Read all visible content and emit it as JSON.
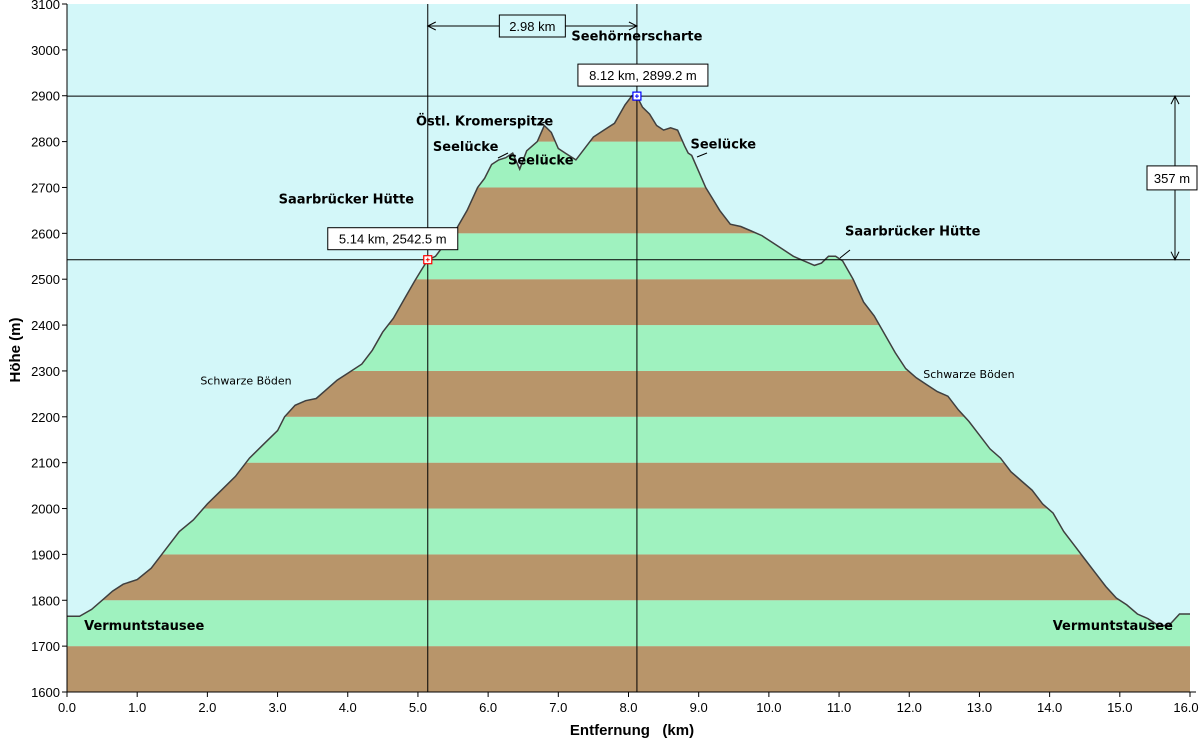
{
  "chart_data": {
    "type": "area",
    "title": "",
    "xlabel": "Entfernung   (km)",
    "ylabel": "Höhe (m)",
    "xlim": [
      0,
      16
    ],
    "ylim": [
      1600,
      3100
    ],
    "x_ticks": [
      "0.0",
      "1.0",
      "2.0",
      "3.0",
      "4.0",
      "5.0",
      "6.0",
      "7.0",
      "8.0",
      "9.0",
      "10.0",
      "11.0",
      "12.0",
      "13.0",
      "14.0",
      "15.0",
      "16.0"
    ],
    "y_ticks": [
      "1600",
      "1700",
      "1800",
      "1900",
      "2000",
      "2100",
      "2200",
      "2300",
      "2400",
      "2500",
      "2600",
      "2700",
      "2800",
      "2900",
      "3000",
      "3100"
    ],
    "grid": false,
    "background_color": "#d3f7f9",
    "band_colors": [
      "#b8956a",
      "#9ff2bf"
    ],
    "profile_line_color": "#3f3f3f",
    "series": [
      {
        "x": [
          0.0,
          0.18,
          0.35,
          0.5,
          0.65,
          0.8,
          1.0,
          1.2,
          1.4,
          1.6,
          1.8,
          2.0,
          2.2,
          2.4,
          2.6,
          2.8,
          3.0,
          3.1,
          3.25,
          3.4,
          3.55,
          3.7,
          3.85,
          4.0,
          4.2,
          4.35,
          4.5,
          4.65,
          4.8,
          4.95,
          5.05,
          5.14,
          5.25,
          5.4,
          5.55,
          5.7,
          5.85,
          5.95,
          6.05,
          6.15,
          6.25,
          6.35,
          6.45,
          6.55,
          6.7,
          6.8,
          6.9,
          7.0,
          7.1,
          7.25,
          7.4,
          7.5,
          7.65,
          7.8,
          7.95,
          8.05,
          8.12,
          8.2,
          8.3,
          8.4,
          8.5,
          8.6,
          8.7,
          8.8,
          8.85,
          8.9,
          9.0,
          9.1,
          9.2,
          9.3,
          9.45,
          9.6,
          9.75,
          9.9,
          10.05,
          10.2,
          10.35,
          10.5,
          10.65,
          10.75,
          10.85,
          10.95,
          11.05,
          11.2,
          11.35,
          11.5,
          11.65,
          11.8,
          11.95,
          12.1,
          12.25,
          12.4,
          12.55,
          12.7,
          12.85,
          13.0,
          13.15,
          13.3,
          13.45,
          13.6,
          13.75,
          13.9,
          14.05,
          14.2,
          14.35,
          14.5,
          14.65,
          14.8,
          14.95,
          15.1,
          15.25,
          15.4,
          15.55,
          15.7,
          15.85,
          16.0
        ],
        "y": [
          1765,
          1765,
          1780,
          1800,
          1820,
          1835,
          1845,
          1870,
          1910,
          1950,
          1975,
          2010,
          2040,
          2070,
          2110,
          2140,
          2170,
          2200,
          2225,
          2235,
          2240,
          2260,
          2280,
          2295,
          2315,
          2345,
          2385,
          2415,
          2455,
          2495,
          2520,
          2542,
          2550,
          2580,
          2610,
          2650,
          2700,
          2720,
          2750,
          2760,
          2765,
          2775,
          2740,
          2780,
          2800,
          2835,
          2820,
          2785,
          2775,
          2760,
          2790,
          2810,
          2825,
          2840,
          2880,
          2900,
          2899,
          2875,
          2860,
          2835,
          2825,
          2830,
          2825,
          2790,
          2775,
          2770,
          2735,
          2700,
          2675,
          2650,
          2620,
          2615,
          2605,
          2595,
          2580,
          2565,
          2550,
          2540,
          2530,
          2535,
          2550,
          2550,
          2540,
          2500,
          2450,
          2420,
          2380,
          2340,
          2305,
          2285,
          2270,
          2255,
          2245,
          2215,
          2190,
          2160,
          2130,
          2110,
          2080,
          2060,
          2040,
          2010,
          1990,
          1950,
          1920,
          1890,
          1860,
          1830,
          1805,
          1790,
          1770,
          1760,
          1745,
          1745,
          1770,
          1770
        ]
      }
    ],
    "markers": [
      {
        "x": 5.14,
        "y": 2542.5,
        "label": "5.14 km, 2542.5 m",
        "color": "#ff0000"
      },
      {
        "x": 8.12,
        "y": 2899.2,
        "label": "8.12 km, 2899.2 m",
        "color": "#0000ff"
      }
    ],
    "distance_label": "2.98 km",
    "height_diff_label": "357 m",
    "annotations_bold": [
      {
        "text": "Seehörnerscharte",
        "x": 8.12,
        "y": 3020
      },
      {
        "text": "Östl. Kromerspitze",
        "x": 5.95,
        "y": 2835
      },
      {
        "text": "Seelücke",
        "x": 5.68,
        "y": 2780
      },
      {
        "text": "Seelücke",
        "x": 6.75,
        "y": 2750
      },
      {
        "text": "Seelücke",
        "x": 9.35,
        "y": 2785
      },
      {
        "text": "Saarbrücker Hütte",
        "x": 3.98,
        "y": 2665
      },
      {
        "text": "Saarbrücker Hütte",
        "x": 12.05,
        "y": 2595
      },
      {
        "text": "Vermuntstausee",
        "x": 1.1,
        "y": 1735
      },
      {
        "text": "Vermuntstausee",
        "x": 14.9,
        "y": 1735
      }
    ],
    "annotations_small": [
      {
        "text": "Schwarze Böden",
        "x": 2.55,
        "y": 2270
      },
      {
        "text": "Schwarze Böden",
        "x": 12.85,
        "y": 2285
      }
    ]
  }
}
